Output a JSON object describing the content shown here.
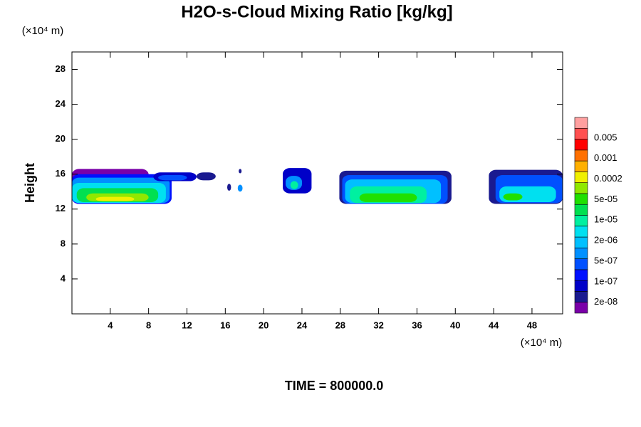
{
  "chart_data": {
    "type": "contour",
    "title": "H2O-s-Cloud Mixing Ratio [kg/kg]",
    "y_label": "Height",
    "y_unit": "(×10⁴ m)",
    "x_unit": "(×10⁴ m)",
    "footer": "TIME = 800000.0",
    "xlim": [
      0,
      51.2
    ],
    "ylim": [
      0,
      30
    ],
    "xticks": [
      4,
      8,
      12,
      16,
      20,
      24,
      28,
      32,
      36,
      40,
      44,
      48
    ],
    "yticks": [
      4,
      8,
      12,
      16,
      20,
      24,
      28
    ],
    "colorbar": {
      "colors": [
        "#7a00a8",
        "#1a1a90",
        "#0000c8",
        "#0010ff",
        "#0050ff",
        "#0090ff",
        "#00c0ff",
        "#00e0f0",
        "#00f0a0",
        "#00e050",
        "#20e000",
        "#90e800",
        "#f0f000",
        "#ffb000",
        "#ff7000",
        "#ff0000",
        "#ff5050",
        "#ffa0a0"
      ],
      "levels": [
        {
          "value": 2e-08,
          "label": "2e-08"
        },
        {
          "value": 1e-07,
          "label": "1e-07"
        },
        {
          "value": 5e-07,
          "label": "5e-07"
        },
        {
          "value": 2e-06,
          "label": "2e-06"
        },
        {
          "value": 1e-05,
          "label": "1e-05"
        },
        {
          "value": 5e-05,
          "label": "5e-05"
        },
        {
          "value": 0.0002,
          "label": "0.0002"
        },
        {
          "value": 0.001,
          "label": "0.001"
        },
        {
          "value": 0.005,
          "label": "0.005"
        }
      ]
    },
    "patches": [
      {
        "level": 0,
        "x": [
          0,
          8.0
        ],
        "y": [
          12.6,
          16.6
        ]
      },
      {
        "level": 3,
        "x": [
          0,
          10.4
        ],
        "y": [
          12.6,
          16.0
        ]
      },
      {
        "level": 5,
        "x": [
          0,
          10.2
        ],
        "y": [
          12.7,
          15.6
        ]
      },
      {
        "level": 7,
        "x": [
          0,
          9.8
        ],
        "y": [
          12.7,
          15.0
        ]
      },
      {
        "level": 9,
        "x": [
          0.5,
          9.0
        ],
        "y": [
          12.8,
          14.4
        ]
      },
      {
        "level": 11,
        "x": [
          1.5,
          8.0
        ],
        "y": [
          12.9,
          13.8
        ]
      },
      {
        "level": 12,
        "x": [
          2.5,
          6.5
        ],
        "y": [
          12.9,
          13.4
        ]
      },
      {
        "level": 2,
        "x": [
          8.5,
          13.0
        ],
        "y": [
          15.2,
          16.2
        ]
      },
      {
        "level": 4,
        "x": [
          9.0,
          12.0
        ],
        "y": [
          15.3,
          15.9
        ]
      },
      {
        "level": 1,
        "x": [
          13.0,
          15.0
        ],
        "y": [
          15.3,
          16.2
        ]
      },
      {
        "level": 1,
        "x": [
          16.2,
          16.6
        ],
        "y": [
          14.1,
          14.9
        ]
      },
      {
        "level": 1,
        "x": [
          17.4,
          17.7
        ],
        "y": [
          16.1,
          16.6
        ]
      },
      {
        "level": 5,
        "x": [
          17.3,
          17.8
        ],
        "y": [
          14.0,
          14.8
        ]
      },
      {
        "level": 2,
        "x": [
          22.0,
          25.0
        ],
        "y": [
          13.8,
          16.7
        ]
      },
      {
        "level": 5,
        "x": [
          22.3,
          24.0
        ],
        "y": [
          14.2,
          15.8
        ]
      },
      {
        "level": 8,
        "x": [
          22.8,
          23.6
        ],
        "y": [
          14.3,
          15.2
        ]
      },
      {
        "level": 1,
        "x": [
          27.9,
          39.6
        ],
        "y": [
          12.6,
          16.4
        ]
      },
      {
        "level": 4,
        "x": [
          28.2,
          39.2
        ],
        "y": [
          12.6,
          15.9
        ]
      },
      {
        "level": 6,
        "x": [
          28.5,
          38.5
        ],
        "y": [
          12.7,
          15.4
        ]
      },
      {
        "level": 8,
        "x": [
          29.0,
          37.0
        ],
        "y": [
          12.7,
          14.6
        ]
      },
      {
        "level": 10,
        "x": [
          30.0,
          36.0
        ],
        "y": [
          12.8,
          13.8
        ]
      },
      {
        "level": 1,
        "x": [
          43.5,
          51.2
        ],
        "y": [
          12.6,
          16.5
        ]
      },
      {
        "level": 4,
        "x": [
          44.2,
          51.2
        ],
        "y": [
          12.7,
          15.9
        ]
      },
      {
        "level": 7,
        "x": [
          44.6,
          50.5
        ],
        "y": [
          12.8,
          14.6
        ]
      },
      {
        "level": 10,
        "x": [
          45.0,
          47.0
        ],
        "y": [
          13.0,
          13.8
        ]
      }
    ]
  }
}
